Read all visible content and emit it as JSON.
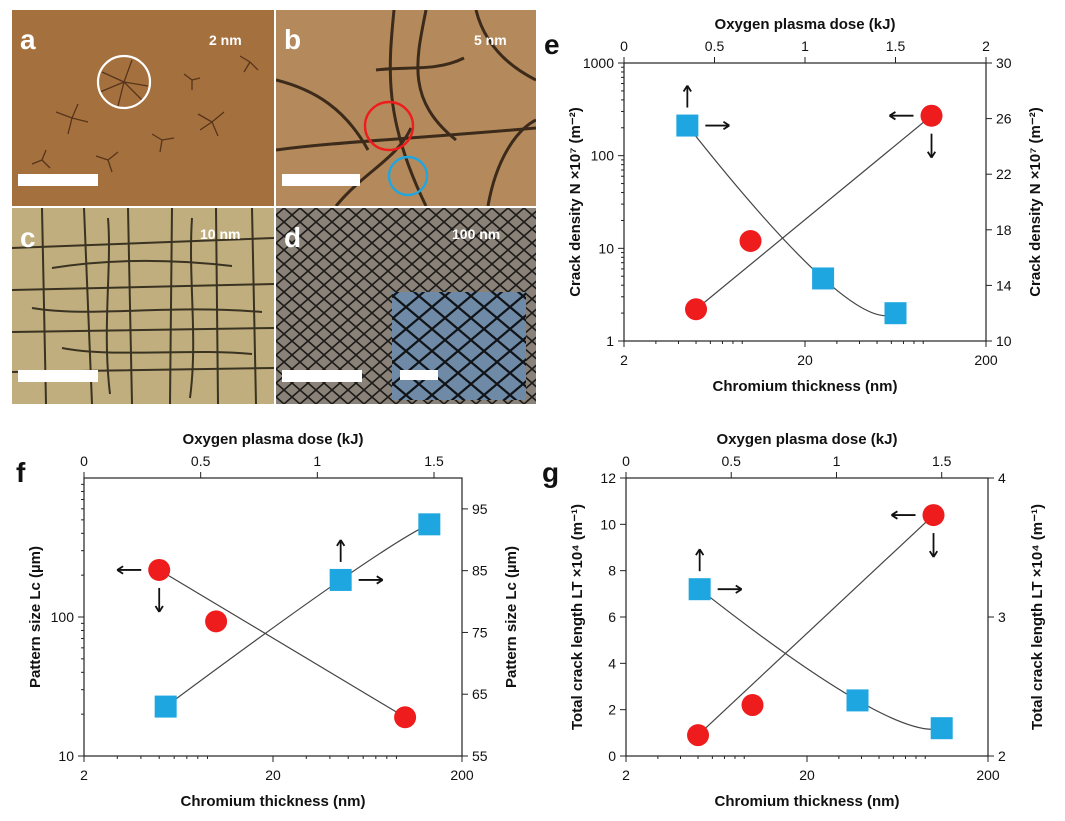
{
  "micrographs": [
    {
      "panel": "a",
      "thickness": "2 nm",
      "base": "#a4703e",
      "crack": "#4a2a14"
    },
    {
      "panel": "b",
      "thickness": "5 nm",
      "base": "#b48a5c",
      "crack": "#3c2a1a"
    },
    {
      "panel": "c",
      "thickness": "10 nm",
      "base": "#c0ae7e",
      "crack": "#3a3322"
    },
    {
      "panel": "d",
      "thickness": "100 nm",
      "base": "#8a8278",
      "crack": "#1e1c1a"
    }
  ],
  "colors": {
    "circle_series": "#ee1c1c",
    "square_series": "#1ea6e0"
  },
  "chart_data": [
    {
      "panel": "e",
      "type": "scatter",
      "xlabel": "Chromium thickness (nm)",
      "x_top_label": "Oxygen plasma dose (kJ)",
      "ylabel": "Crack density N ×10⁷ (m⁻²)",
      "y2label": "Crack density N ×10⁷ (m⁻²)",
      "xscale": "log",
      "xlim": [
        2,
        200
      ],
      "xticks": [
        "2",
        "20",
        "200"
      ],
      "x_top_lim": [
        0,
        2
      ],
      "x_top_ticks": [
        "0",
        "0.5",
        "1",
        "1.5",
        "2"
      ],
      "yscale": "log",
      "ylim": [
        1,
        1000
      ],
      "yticks": [
        "1",
        "10",
        "100",
        "1000"
      ],
      "y2lim": [
        10,
        30
      ],
      "y2ticks": [
        "10",
        "14",
        "18",
        "22",
        "26",
        "30"
      ],
      "series": [
        {
          "marker": "circle",
          "axis": "bottom-left",
          "x": [
            5,
            10,
            100
          ],
          "y": [
            2.2,
            12,
            270
          ],
          "fit": "power"
        },
        {
          "marker": "square",
          "axis": "top-right",
          "x": [
            0.35,
            1.1,
            1.5
          ],
          "y": [
            25.5,
            14.5,
            12
          ],
          "fit": "smooth"
        }
      ]
    },
    {
      "panel": "f",
      "type": "scatter",
      "xlabel": "Chromium thickness (nm)",
      "x_top_label": "Oxygen plasma dose (kJ)",
      "ylabel": "Pattern size Lc (µm)",
      "y2label": "Pattern size Lc (µm)",
      "xscale": "log",
      "xlim": [
        2,
        200
      ],
      "xticks": [
        "2",
        "20",
        "200"
      ],
      "x_top_lim": [
        0,
        1.62
      ],
      "x_top_ticks": [
        "0",
        "0.5",
        "1",
        "1.5"
      ],
      "yscale": "log",
      "ylim": [
        10,
        1000
      ],
      "yticks": [
        "10",
        "100"
      ],
      "y2lim": [
        55,
        100
      ],
      "y2ticks": [
        "55",
        "65",
        "75",
        "85",
        "95"
      ],
      "series": [
        {
          "marker": "circle",
          "axis": "bottom-left",
          "x": [
            5,
            10,
            100
          ],
          "y": [
            218,
            93,
            19
          ],
          "fit": "power"
        },
        {
          "marker": "square",
          "axis": "top-right",
          "x": [
            0.35,
            1.1,
            1.48
          ],
          "y": [
            63,
            83.5,
            92.5
          ],
          "fit": "smooth"
        }
      ]
    },
    {
      "panel": "g",
      "type": "scatter",
      "xlabel": "Chromium thickness (nm)",
      "x_top_label": "Oxygen plasma dose (kJ)",
      "ylabel": "Total crack length LT ×10⁴ (m⁻¹)",
      "y2label": "Total crack length LT ×10⁴ (m⁻¹)",
      "xscale": "log",
      "xlim": [
        2,
        200
      ],
      "xticks": [
        "2",
        "20",
        "200"
      ],
      "x_top_lim": [
        0,
        1.72
      ],
      "x_top_ticks": [
        "0",
        "0.5",
        "1",
        "1.5"
      ],
      "yscale": "linear",
      "ylim": [
        0,
        12
      ],
      "yticks": [
        "0",
        "2",
        "4",
        "6",
        "8",
        "10",
        "12"
      ],
      "y2lim": [
        2,
        4
      ],
      "y2ticks": [
        "2",
        "3",
        "4"
      ],
      "series": [
        {
          "marker": "circle",
          "axis": "bottom-left",
          "x": [
            5,
            10,
            100
          ],
          "y": [
            0.9,
            2.2,
            10.4
          ],
          "fit": "linear-logx"
        },
        {
          "marker": "square",
          "axis": "top-right",
          "x": [
            0.35,
            1.1,
            1.5
          ],
          "y": [
            3.2,
            2.4,
            2.2
          ],
          "fit": "smooth"
        }
      ]
    }
  ]
}
